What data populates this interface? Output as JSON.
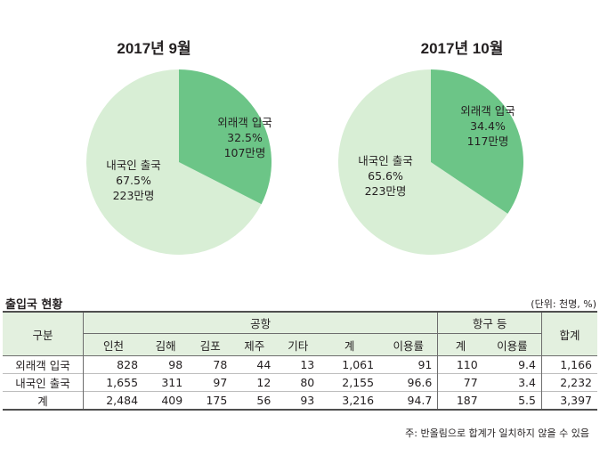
{
  "colors": {
    "inbound": "#6cc587",
    "outbound": "#d8eed5",
    "header_bg": "#e3f0df"
  },
  "chart_data": [
    {
      "type": "pie",
      "title": "2017년 9월",
      "slices": [
        {
          "label": "외래객 입국",
          "percent_text": "32.5%",
          "count_text": "107만명",
          "value": 32.5,
          "color": "#6cc587"
        },
        {
          "label": "내국인 출국",
          "percent_text": "67.5%",
          "count_text": "223만명",
          "value": 67.5,
          "color": "#d8eed5"
        }
      ]
    },
    {
      "type": "pie",
      "title": "2017년 10월",
      "slices": [
        {
          "label": "외래객 입국",
          "percent_text": "34.4%",
          "count_text": "117만명",
          "value": 34.4,
          "color": "#6cc587"
        },
        {
          "label": "내국인 출국",
          "percent_text": "65.6%",
          "count_text": "223만명",
          "value": 65.6,
          "color": "#d8eed5"
        }
      ]
    }
  ],
  "table": {
    "title": "출입국 현황",
    "unit": "(단위: 천명, %)",
    "header": {
      "category": "구분",
      "airport_group": "공항",
      "port_group": "항구 등",
      "total": "합계",
      "airport_cols": [
        "인천",
        "김해",
        "김포",
        "제주",
        "기타",
        "계",
        "이용률"
      ],
      "port_cols": [
        "계",
        "이용률"
      ]
    },
    "rows": [
      {
        "label": "외래객 입국",
        "cells": [
          "828",
          "98",
          "78",
          "44",
          "13",
          "1,061",
          "91",
          "110",
          "9.4",
          "1,166"
        ]
      },
      {
        "label": "내국인 출국",
        "cells": [
          "1,655",
          "311",
          "97",
          "12",
          "80",
          "2,155",
          "96.6",
          "77",
          "3.4",
          "2,232"
        ]
      },
      {
        "label": "계",
        "cells": [
          "2,484",
          "409",
          "175",
          "56",
          "93",
          "3,216",
          "94.7",
          "187",
          "5.5",
          "3,397"
        ]
      }
    ],
    "footnote": "주: 반올림으로 합계가 일치하지 않을 수 있음"
  }
}
